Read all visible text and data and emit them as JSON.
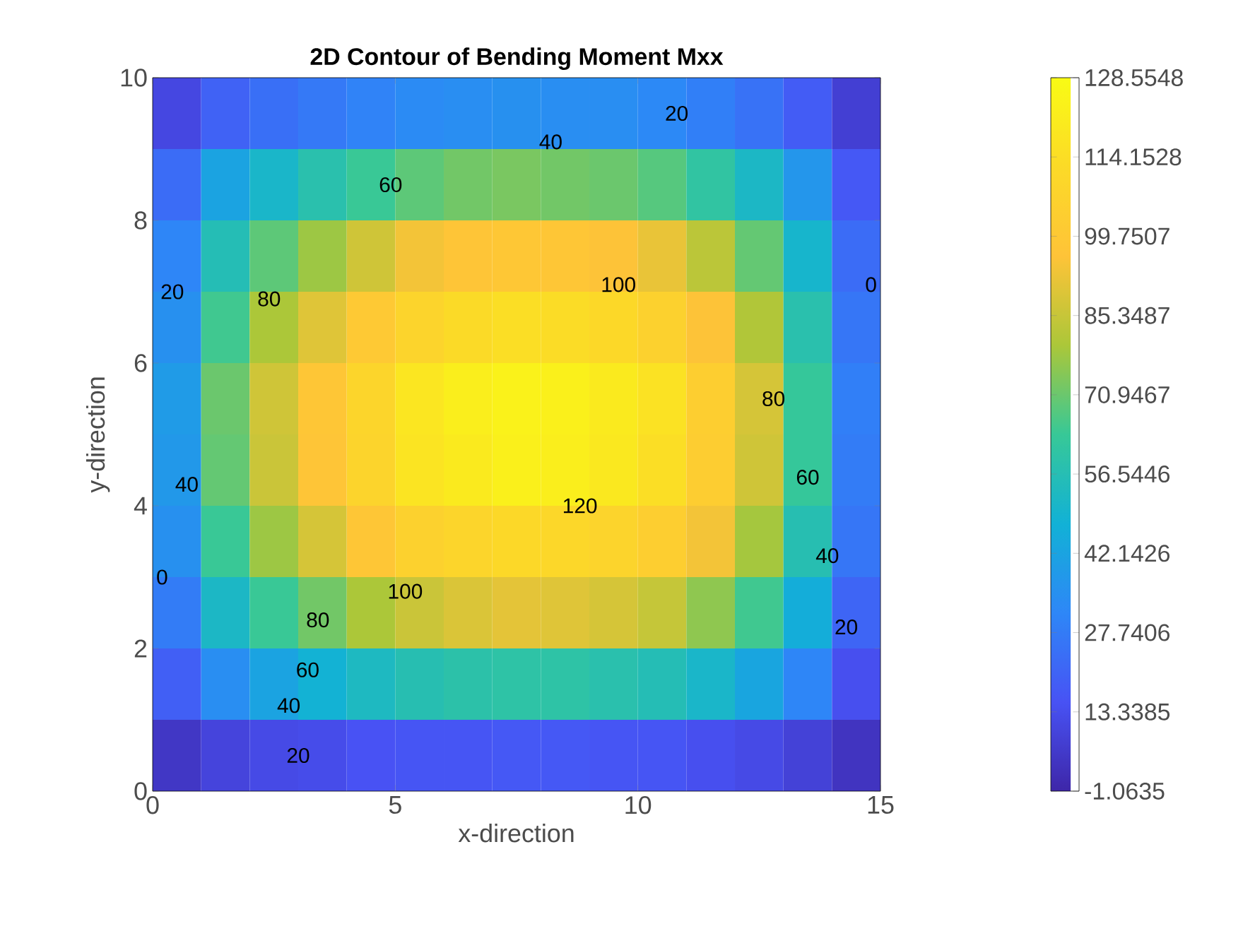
{
  "chart_data": {
    "type": "heatmap",
    "title": "2D Contour of Bending Moment Mxx",
    "xlabel": "x-direction",
    "ylabel": "y-direction",
    "x": [
      0.5,
      1.5,
      2.5,
      3.5,
      4.5,
      5.5,
      6.5,
      7.5,
      8.5,
      9.5,
      10.5,
      11.5,
      12.5,
      13.5,
      14.5
    ],
    "y": [
      9.5,
      8.5,
      7.5,
      6.5,
      5.5,
      4.5,
      3.5,
      2.5,
      1.5,
      0.5
    ],
    "xlim": [
      0,
      15
    ],
    "xticks": [
      0,
      5,
      10,
      15
    ],
    "ylim": [
      0,
      10
    ],
    "yticks": [
      0,
      2,
      4,
      6,
      8,
      10
    ],
    "clim": [
      -1.0635,
      128.5548
    ],
    "cticks": [
      -1.0635,
      13.3385,
      27.7406,
      42.1426,
      56.5446,
      70.9467,
      85.3487,
      99.7507,
      114.1528,
      128.5548
    ],
    "cells": [
      [
        11,
        20,
        24,
        27,
        30,
        33,
        34,
        35,
        34,
        34,
        32,
        29,
        25,
        18,
        8
      ],
      [
        23,
        42,
        51,
        58,
        64,
        69,
        72,
        73,
        72,
        71,
        68,
        61,
        52,
        37,
        17
      ],
      [
        31,
        56,
        69,
        78,
        87,
        94,
        97,
        99,
        98,
        96,
        92,
        83,
        70,
        50,
        23
      ],
      [
        35,
        65,
        80,
        90,
        100,
        108,
        112,
        114,
        113,
        111,
        106,
        96,
        81,
        58,
        26
      ],
      [
        39,
        71,
        87,
        98,
        109,
        118,
        122,
        124,
        123,
        120,
        116,
        104,
        88,
        63,
        29
      ],
      [
        38,
        70,
        86,
        97,
        108,
        117,
        120,
        123,
        122,
        119,
        114,
        103,
        87,
        63,
        28
      ],
      [
        35,
        64,
        78,
        88,
        98,
        106,
        109,
        111,
        110,
        108,
        104,
        94,
        79,
        57,
        26
      ],
      [
        28,
        52,
        64,
        72,
        80,
        86,
        89,
        91,
        90,
        88,
        85,
        76,
        65,
        46,
        21
      ],
      [
        19,
        34,
        42,
        48,
        53,
        57,
        59,
        60,
        60,
        58,
        56,
        51,
        43,
        31,
        14
      ],
      [
        5,
        10,
        12,
        13,
        15,
        16,
        16,
        17,
        17,
        16,
        16,
        14,
        12,
        9,
        4
      ]
    ],
    "annotations": [
      "20",
      "40",
      "60",
      "20",
      "80",
      "100",
      "0",
      "80",
      "40",
      "120",
      "60",
      "0",
      "40",
      "100",
      "80",
      "20",
      "60",
      "40",
      "20"
    ]
  }
}
